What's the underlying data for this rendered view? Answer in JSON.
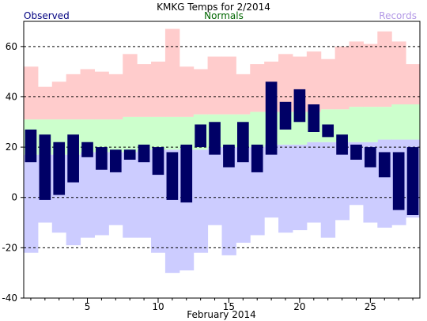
{
  "chart_data": {
    "type": "bar",
    "title": "KMKG Temps for 2/2014",
    "xlabel": "February 2014",
    "legend": {
      "observed": "Observed",
      "normals": "Normals",
      "records": "Records"
    },
    "colors": {
      "observed": "#000066",
      "observed_label": "#000080",
      "normals": "#ccffcc",
      "normals_label": "#006600",
      "records_high": "#ffcccc",
      "records_low": "#ccccff",
      "records_label": "#b399e6",
      "grid": "#000000"
    },
    "ylim": [
      -40,
      70
    ],
    "yticks": [
      -40,
      -20,
      0,
      20,
      40,
      60
    ],
    "xlim": [
      0.5,
      28.5
    ],
    "xticks": [
      5,
      10,
      15,
      20,
      25
    ],
    "grid": "dashed horizontal",
    "days": [
      1,
      2,
      3,
      4,
      5,
      6,
      7,
      8,
      9,
      10,
      11,
      12,
      13,
      14,
      15,
      16,
      17,
      18,
      19,
      20,
      21,
      22,
      23,
      24,
      25,
      26,
      27,
      28
    ],
    "observed_high": [
      27,
      25,
      22,
      25,
      22,
      20,
      19,
      19,
      21,
      20,
      18,
      21,
      29,
      30,
      21,
      30,
      21,
      46,
      38,
      43,
      37,
      29,
      25,
      21,
      20,
      18,
      18,
      20
    ],
    "observed_low": [
      14,
      -1,
      1,
      6,
      16,
      11,
      10,
      15,
      14,
      9,
      -1,
      -2,
      20,
      17,
      12,
      14,
      10,
      17,
      27,
      30,
      26,
      24,
      17,
      15,
      12,
      8,
      -5,
      -7
    ],
    "normal_high": [
      31,
      31,
      31,
      31,
      31,
      31,
      31,
      32,
      32,
      32,
      32,
      32,
      33,
      33,
      33,
      33,
      34,
      34,
      34,
      34,
      34,
      35,
      35,
      36,
      36,
      36,
      37,
      37
    ],
    "normal_low": [
      17,
      17,
      17,
      17,
      18,
      18,
      18,
      18,
      19,
      19,
      19,
      19,
      19,
      20,
      20,
      20,
      20,
      21,
      21,
      21,
      22,
      22,
      22,
      22,
      22,
      23,
      23,
      23
    ],
    "record_high": [
      52,
      44,
      46,
      49,
      51,
      50,
      49,
      57,
      53,
      54,
      67,
      52,
      51,
      56,
      56,
      49,
      53,
      54,
      57,
      56,
      58,
      55,
      60,
      62,
      61,
      66,
      62,
      53
    ],
    "record_low": [
      -22,
      -10,
      -14,
      -19,
      -16,
      -15,
      -11,
      -16,
      -16,
      -22,
      -30,
      -29,
      -22,
      -11,
      -23,
      -18,
      -15,
      -8,
      -14,
      -13,
      -10,
      -16,
      -9,
      -3,
      -10,
      -12,
      -11,
      -8
    ]
  }
}
